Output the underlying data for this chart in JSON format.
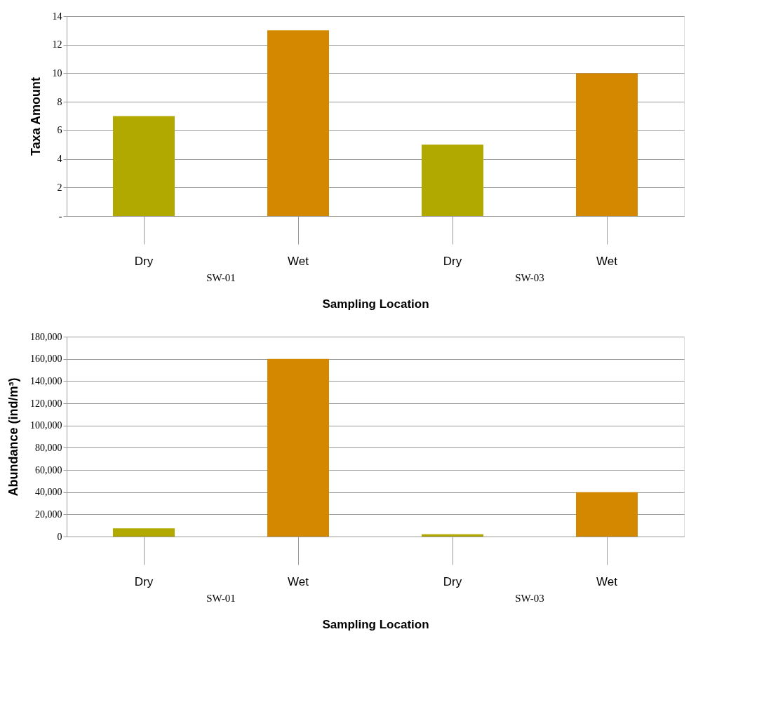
{
  "chart_data": [
    {
      "type": "bar",
      "categories": [
        "Dry",
        "Wet",
        "Dry",
        "Wet"
      ],
      "values": [
        7,
        13,
        5,
        10
      ],
      "colors": [
        "#b2a900",
        "#d48800",
        "#b2a900",
        "#d48800"
      ],
      "xlabel": "Sampling Location",
      "ylabel": "Taxa Amount",
      "ylim": [
        0,
        14
      ],
      "yticks": [
        {
          "value": 0,
          "label": "-"
        },
        2,
        4,
        6,
        8,
        10,
        12,
        14
      ],
      "grid": "y",
      "annotations": [
        "SW-01",
        "SW-03"
      ]
    },
    {
      "type": "bar",
      "categories": [
        "Dry",
        "Wet",
        "Dry",
        "Wet"
      ],
      "values": [
        7500,
        160000,
        2000,
        40000
      ],
      "colors": [
        "#b2a900",
        "#d48800",
        "#b2a900",
        "#d48800"
      ],
      "xlabel": "Sampling Location",
      "ylabel": "Abundance (ind/m³)",
      "ylim": [
        0,
        180000
      ],
      "yticks": [
        0,
        {
          "value": 20000,
          "label": "20,000"
        },
        {
          "value": 40000,
          "label": "40,000"
        },
        {
          "value": 60000,
          "label": "60,000"
        },
        {
          "value": 80000,
          "label": "80,000"
        },
        {
          "value": 100000,
          "label": "100,000"
        },
        {
          "value": 120000,
          "label": "120,000"
        },
        {
          "value": 140000,
          "label": "140,000"
        },
        {
          "value": 160000,
          "label": "160,000"
        },
        {
          "value": 180000,
          "label": "180,000"
        }
      ],
      "grid": "y",
      "annotations": [
        "SW-01",
        "SW-03"
      ]
    }
  ]
}
